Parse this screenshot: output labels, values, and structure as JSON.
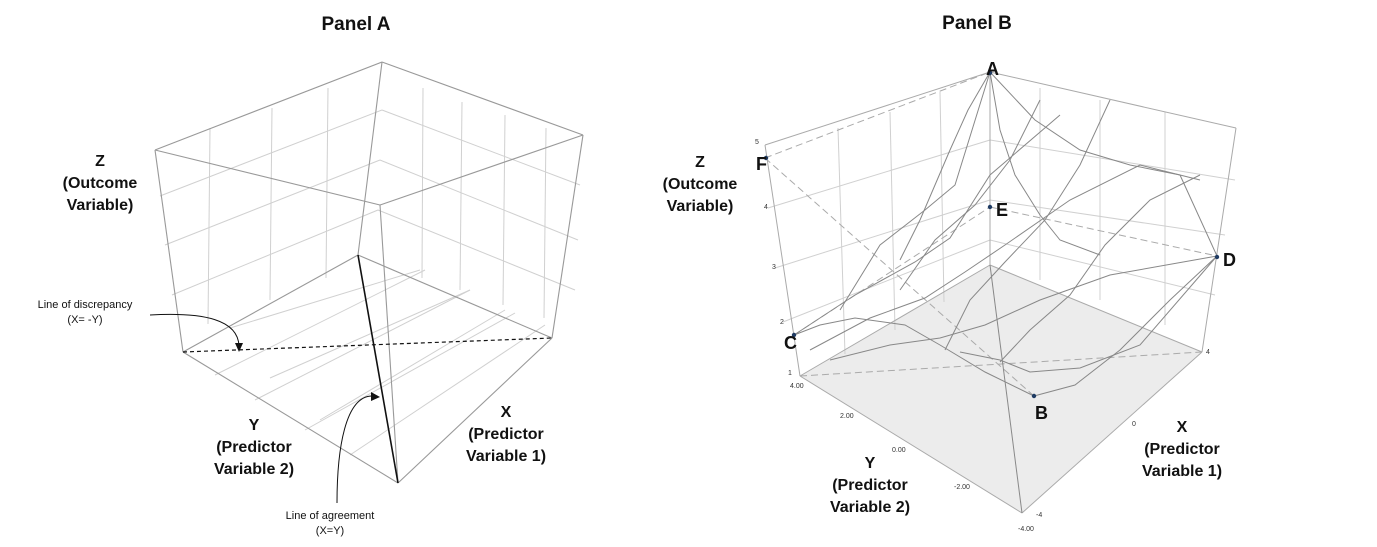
{
  "panel_a": {
    "title": "Panel A",
    "z_label": [
      "Z",
      "(Outcome",
      "Variable)"
    ],
    "y_label": [
      "Y",
      "(Predictor",
      "Variable 2)"
    ],
    "x_label": [
      "X",
      "(Predictor",
      "Variable 1)"
    ],
    "discrepancy": [
      "Line of discrepancy",
      "(X= -Y)"
    ],
    "agreement": [
      "Line of agreement",
      "(X=Y)"
    ]
  },
  "panel_b": {
    "title": "Panel B",
    "z_label": [
      "Z",
      "(Outcome",
      "Variable)"
    ],
    "y_label": [
      "Y",
      "(Predictor",
      "Variable 2)"
    ],
    "x_label": [
      "X",
      "(Predictor",
      "Variable 1)"
    ],
    "points": {
      "a": "A",
      "b": "B",
      "c": "C",
      "d": "D",
      "e": "E",
      "f": "F"
    },
    "z_ticks": [
      "5",
      "4",
      "3",
      "2",
      "1"
    ],
    "y_ticks": [
      "4.00",
      "2.00",
      "0.00",
      "-2.00",
      "-4.00"
    ],
    "x_ticks": [
      "4",
      "0",
      "-4"
    ]
  }
}
